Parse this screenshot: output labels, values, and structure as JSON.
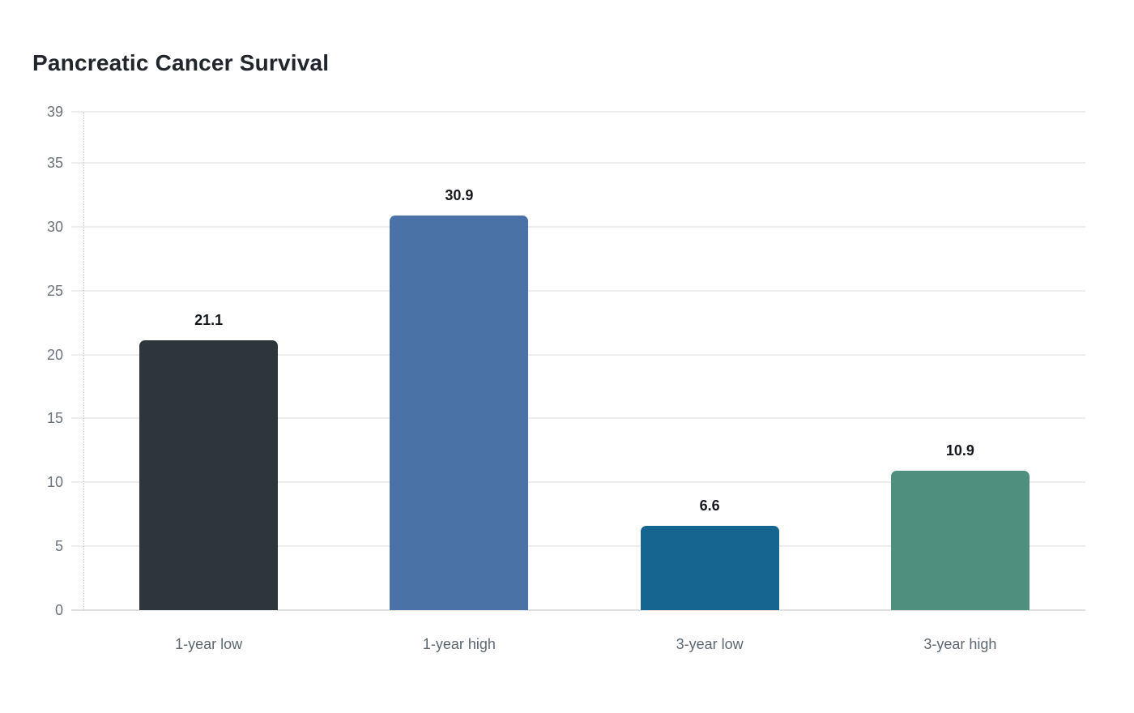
{
  "title": "Pancreatic Cancer Survival",
  "chart_data": {
    "type": "bar",
    "title": "Pancreatic Cancer Survival",
    "categories": [
      "1-year low",
      "1-year high",
      "3-year low",
      "3-year high"
    ],
    "values": [
      21.1,
      30.9,
      6.6,
      10.9
    ],
    "value_labels": [
      "21.1",
      "30.9",
      "6.6",
      "10.9"
    ],
    "bar_colors": [
      "#2c363b",
      "#4b72a7",
      "#166590",
      "#4e8f7d"
    ],
    "yticks": [
      0,
      5,
      10,
      15,
      20,
      25,
      30,
      35,
      39
    ],
    "ylim": [
      0,
      39
    ],
    "xlabel": "",
    "ylabel": "",
    "grid": "horizontal-only",
    "legend": "none"
  },
  "colors": {
    "background": "#ffffff",
    "grid": "#ededed",
    "baseline": "#dfdfdf",
    "axis_dotted": "#c9c9c9",
    "tick_text": "#6a737b",
    "category_text": "#5d6771",
    "title_text": "#20262c",
    "value_text": "#14181c"
  }
}
